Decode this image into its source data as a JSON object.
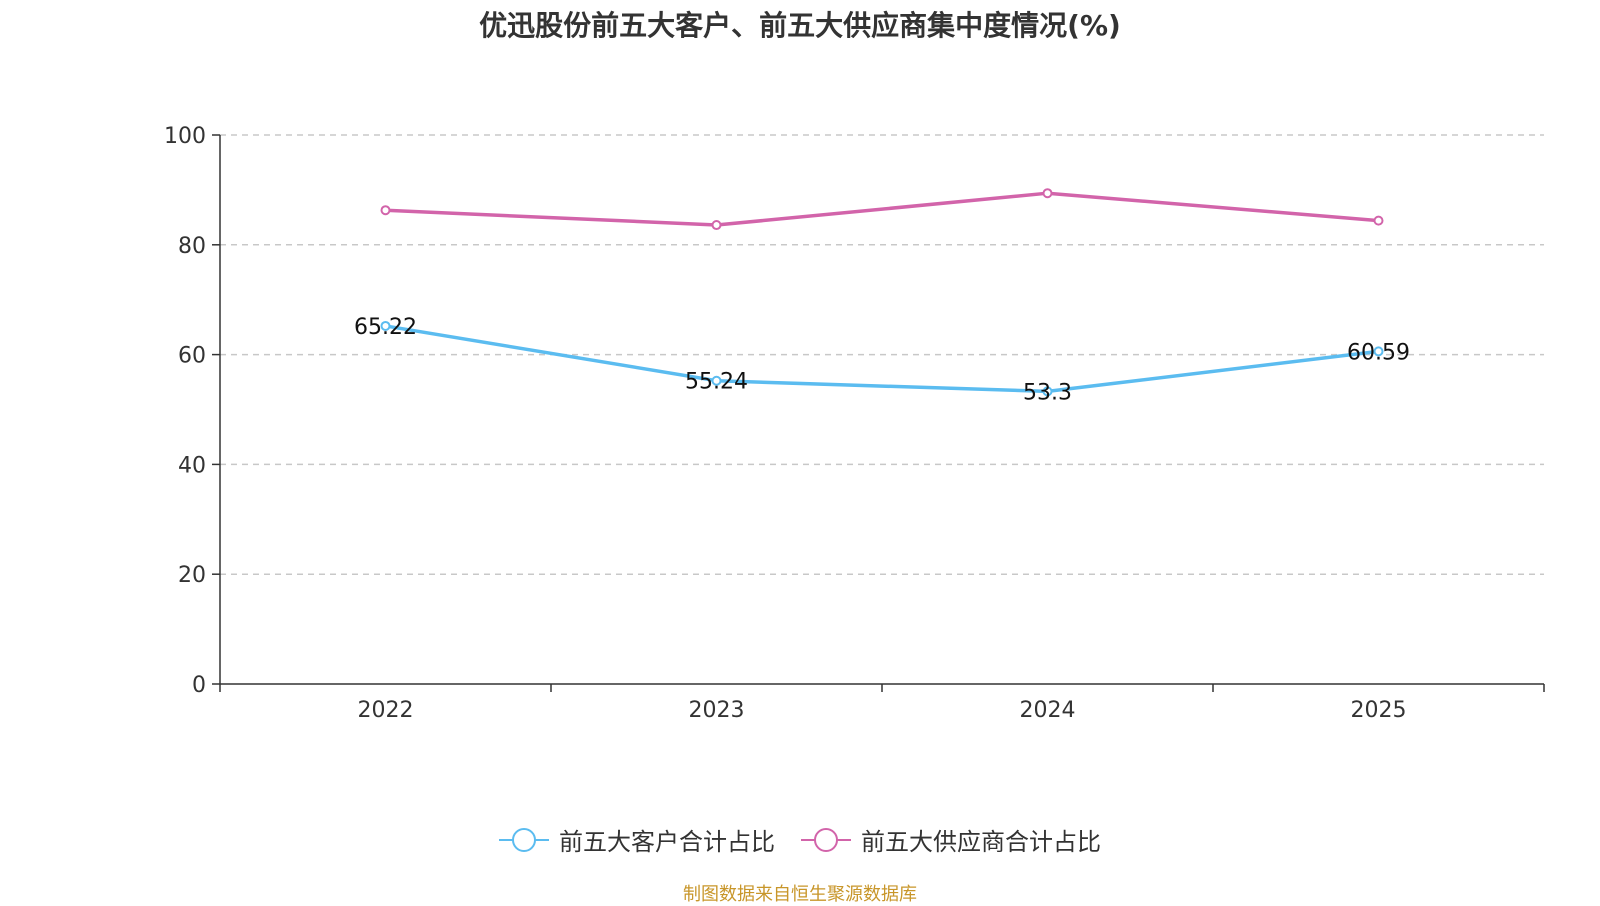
{
  "chart_data": {
    "type": "line",
    "title": "优迅股份前五大客户、前五大供应商集中度情况(%)",
    "categories": [
      "2022",
      "2023",
      "2024",
      "2025"
    ],
    "ylim": [
      0,
      100
    ],
    "yticks": [
      0,
      20,
      40,
      60,
      80,
      100
    ],
    "grid": true,
    "legend_position": "bottom",
    "series": [
      {
        "name": "前五大客户合计占比",
        "color": "#5bbcf0",
        "values": [
          65.22,
          55.24,
          53.3,
          60.59
        ],
        "labels": [
          "65.22",
          "55.24",
          "53.3",
          "60.59"
        ],
        "show_labels": true
      },
      {
        "name": "前五大供应商合计占比",
        "color": "#d264aa",
        "values": [
          86.3,
          83.6,
          89.4,
          84.4
        ],
        "show_labels": false
      }
    ]
  },
  "source_note": "制图数据来自恒生聚源数据库"
}
